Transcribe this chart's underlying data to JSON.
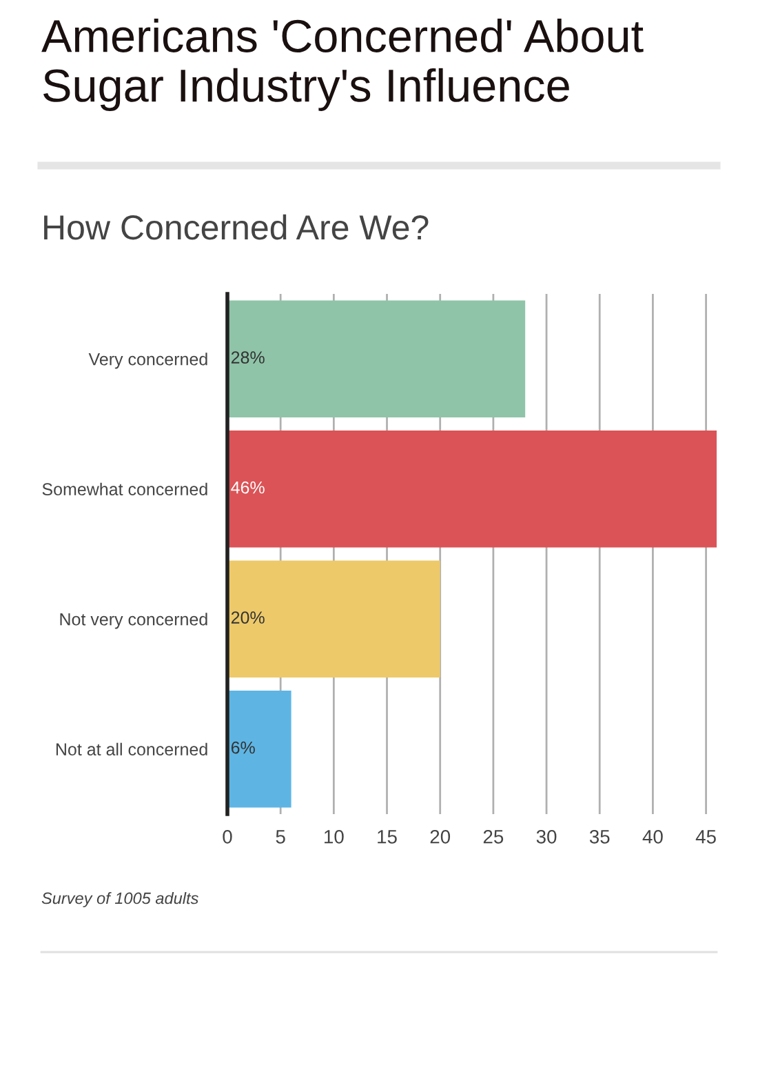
{
  "chart_data": {
    "type": "bar",
    "orientation": "horizontal",
    "title": "Americans 'Concerned' About Sugar Industry's Influence",
    "subtitle": "How Concerned Are We?",
    "categories": [
      "Very concerned",
      "Somewhat concerned",
      "Not very concerned",
      "Not at all concerned"
    ],
    "values": [
      28,
      46,
      20,
      6
    ],
    "colors": [
      "#8fc4a8",
      "#db5356",
      "#edc96a",
      "#5eb5e3"
    ],
    "value_labels": [
      "28%",
      "46%",
      "20%",
      "6%"
    ],
    "xlim": [
      0,
      46
    ],
    "xticks": [
      0,
      5,
      10,
      15,
      20,
      25,
      30,
      35,
      40,
      45
    ],
    "grid": "x",
    "legend": false,
    "annotations": [
      "Survey of 1005 adults"
    ]
  }
}
